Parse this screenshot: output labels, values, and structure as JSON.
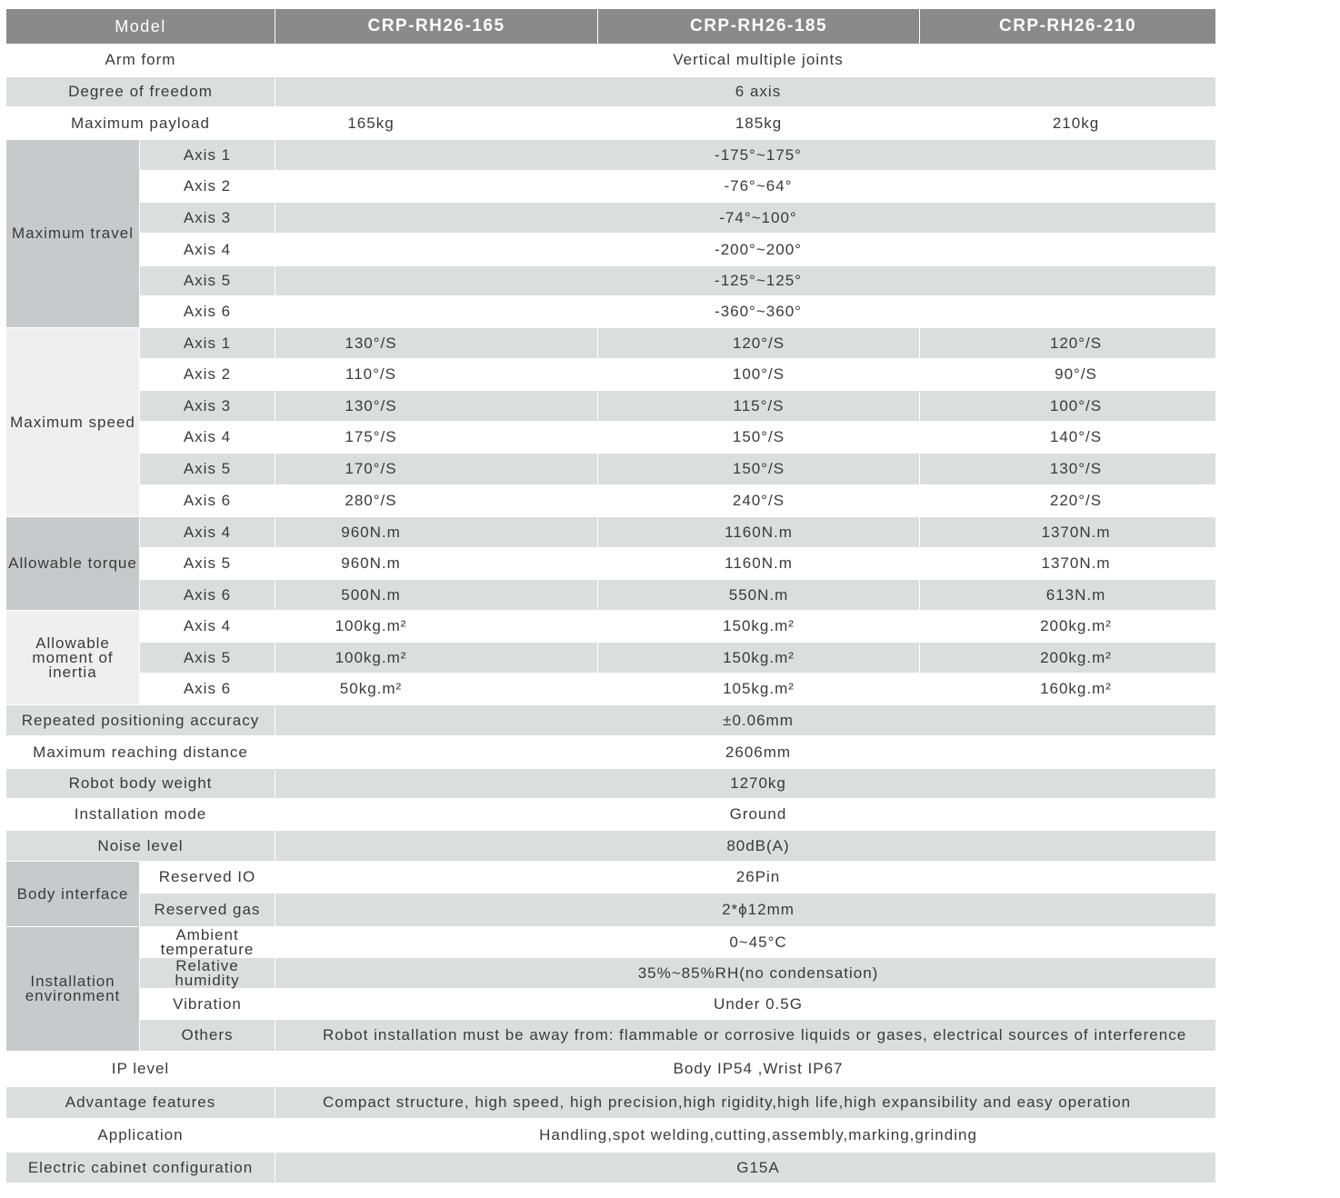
{
  "header": {
    "label": "Model",
    "models": [
      "CRP-RH26-165",
      "CRP-RH26-185",
      "CRP-RH26-210"
    ]
  },
  "colors": {
    "header": "#8a8a8a",
    "row_gray": "#dcdddd",
    "group_dark": "#c8c9ca",
    "group_light": "#efefef"
  },
  "sections": [
    {
      "label": "Arm form",
      "values": [
        "Vertical multiple joints"
      ]
    },
    {
      "label": "Degree of freedom",
      "values": [
        "6 axis"
      ]
    },
    {
      "label": "Maximum payload",
      "values": [
        "165kg",
        "185kg",
        "210kg"
      ]
    },
    {
      "label": "Maximum travel",
      "sub": [
        {
          "label": "Axis 1",
          "values": [
            "-175°~175°"
          ]
        },
        {
          "label": "Axis 2",
          "values": [
            "-76°~64°"
          ]
        },
        {
          "label": "Axis 3",
          "values": [
            "-74°~100°"
          ]
        },
        {
          "label": "Axis 4",
          "values": [
            "-200°~200°"
          ]
        },
        {
          "label": "Axis 5",
          "values": [
            "-125°~125°"
          ]
        },
        {
          "label": "Axis 6",
          "values": [
            "-360°~360°"
          ]
        }
      ]
    },
    {
      "label": "Maximum speed",
      "sub": [
        {
          "label": "Axis 1",
          "values": [
            "130°/S",
            "120°/S",
            "120°/S"
          ]
        },
        {
          "label": "Axis 2",
          "values": [
            "110°/S",
            "100°/S",
            "90°/S"
          ]
        },
        {
          "label": "Axis 3",
          "values": [
            "130°/S",
            "115°/S",
            "100°/S"
          ]
        },
        {
          "label": "Axis 4",
          "values": [
            "175°/S",
            "150°/S",
            "140°/S"
          ]
        },
        {
          "label": "Axis 5",
          "values": [
            "170°/S",
            "150°/S",
            "130°/S"
          ]
        },
        {
          "label": "Axis 6",
          "values": [
            "280°/S",
            "240°/S",
            "220°/S"
          ]
        }
      ]
    },
    {
      "label": "Allowable torque",
      "sub": [
        {
          "label": "Axis 4",
          "values": [
            "960N.m",
            "1160N.m",
            "1370N.m"
          ]
        },
        {
          "label": "Axis 5",
          "values": [
            "960N.m",
            "1160N.m",
            "1370N.m"
          ]
        },
        {
          "label": "Axis 6",
          "values": [
            "500N.m",
            "550N.m",
            "613N.m"
          ]
        }
      ]
    },
    {
      "label": "Allowable moment of inertia",
      "sub": [
        {
          "label": "Axis 4",
          "values": [
            "100kg.m²",
            "150kg.m²",
            "200kg.m²"
          ]
        },
        {
          "label": "Axis 5",
          "values": [
            "100kg.m²",
            "150kg.m²",
            "200kg.m²"
          ]
        },
        {
          "label": "Axis 6",
          "values": [
            "50kg.m²",
            "105kg.m²",
            "160kg.m²"
          ]
        }
      ]
    },
    {
      "label": "Repeated positioning accuracy",
      "values": [
        "±0.06mm"
      ]
    },
    {
      "label": "Maximum reaching distance",
      "values": [
        "2606mm"
      ]
    },
    {
      "label": "Robot body weight",
      "values": [
        "1270kg"
      ]
    },
    {
      "label": "Installation mode",
      "values": [
        "Ground"
      ]
    },
    {
      "label": "Noise level",
      "values": [
        "80dB(A)"
      ]
    },
    {
      "label": "Body interface",
      "sub": [
        {
          "label": "Reserved IO",
          "values": [
            "26Pin"
          ]
        },
        {
          "label": "Reserved gas",
          "values": [
            "2*ϕ12mm"
          ]
        }
      ]
    },
    {
      "label": "Installation environment",
      "sub": [
        {
          "label": "Ambient temperature",
          "values": [
            "0~45°C"
          ]
        },
        {
          "label": "Relative humidity",
          "values": [
            "35%~85%RH(no condensation)"
          ]
        },
        {
          "label": "Vibration",
          "values": [
            "Under 0.5G"
          ]
        },
        {
          "label": "Others",
          "values": [
            "Robot installation must be away from: flammable or corrosive liquids or gases, electrical sources of interference"
          ]
        }
      ]
    },
    {
      "label": "IP level",
      "values": [
        "Body IP54 ,Wrist IP67"
      ]
    },
    {
      "label": "Advantage features",
      "values": [
        "Compact structure, high speed, high precision,high rigidity,high life,high expansibility and easy operation"
      ]
    },
    {
      "label": "Application",
      "values": [
        "Handling,spot welding,cutting,assembly,marking,grinding"
      ]
    },
    {
      "label": "Electric cabinet configuration",
      "values": [
        "G15A"
      ]
    }
  ]
}
